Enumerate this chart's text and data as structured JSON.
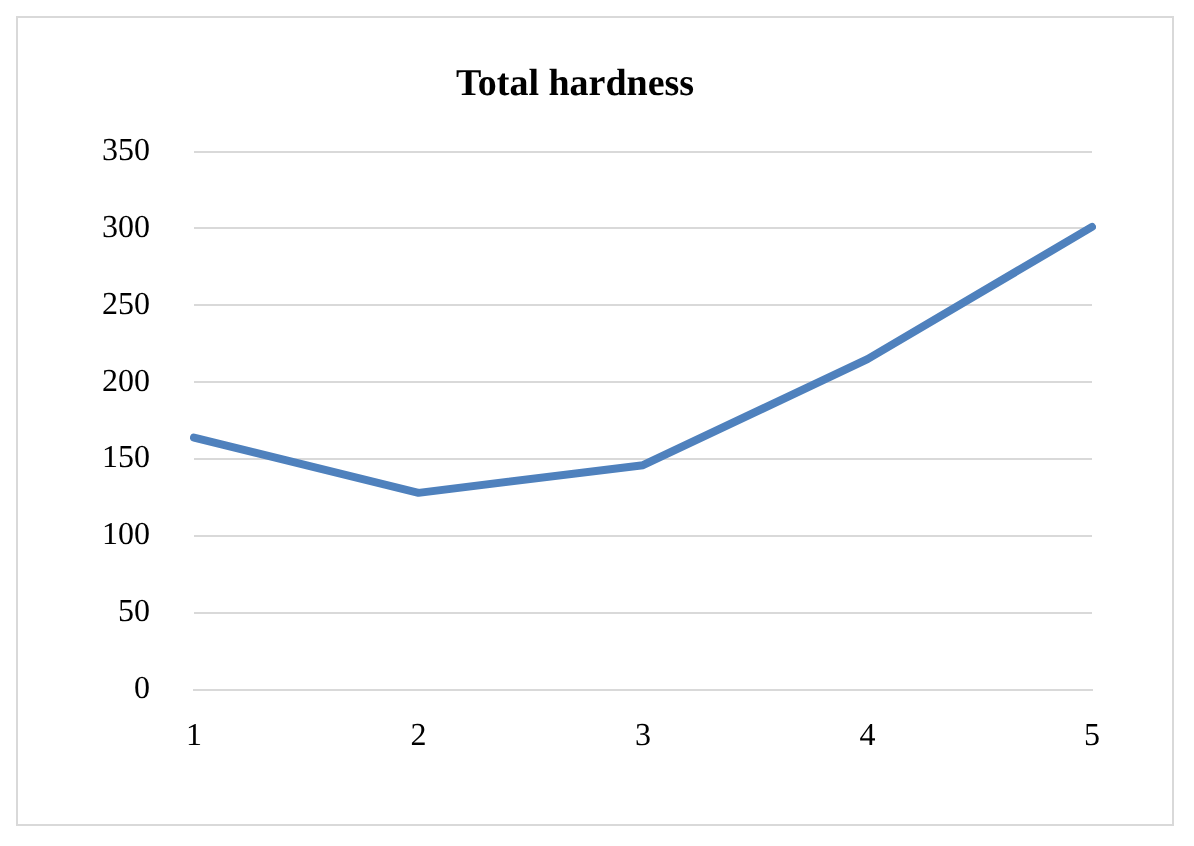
{
  "chart_data": {
    "type": "line",
    "title": "Total hardness",
    "categories": [
      "1",
      "2",
      "3",
      "4",
      "5"
    ],
    "series": [
      {
        "color": "#4f81bd",
        "values": [
          164,
          128,
          146,
          215,
          301
        ]
      }
    ],
    "ylim": [
      0,
      350
    ],
    "yticks": [
      0,
      50,
      100,
      150,
      200,
      250,
      300,
      350
    ],
    "grid": "y",
    "legend": false,
    "marker": "none",
    "line_style": "solid"
  }
}
